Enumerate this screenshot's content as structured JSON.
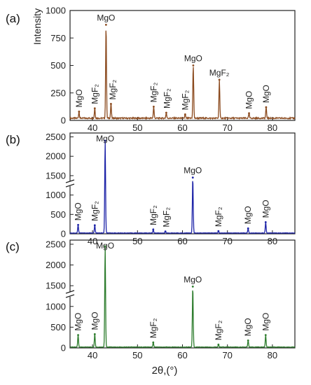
{
  "figure": {
    "xlabel": "2θ,(°)",
    "ylabel": "Intensity"
  },
  "chart_data": [
    {
      "type": "line",
      "panel": "(a)",
      "color": "#8B4A1E",
      "xlim": [
        35,
        85
      ],
      "ylim": [
        0,
        1000
      ],
      "xticks": [
        40,
        50,
        60,
        70,
        80
      ],
      "yticks": [
        0,
        250,
        500,
        750,
        1000
      ],
      "axis_break": false,
      "baseline": 20,
      "peaks": [
        {
          "x": 37.0,
          "y": 80
        },
        {
          "x": 40.5,
          "y": 110
        },
        {
          "x": 43.0,
          "y": 870
        },
        {
          "x": 44.1,
          "y": 150
        },
        {
          "x": 53.6,
          "y": 125
        },
        {
          "x": 56.4,
          "y": 70
        },
        {
          "x": 60.6,
          "y": 55
        },
        {
          "x": 62.4,
          "y": 500
        },
        {
          "x": 68.2,
          "y": 370
        },
        {
          "x": 74.8,
          "y": 65
        },
        {
          "x": 78.6,
          "y": 120
        }
      ],
      "annotations": [
        {
          "text": "MgO",
          "x": 37.0,
          "rotated": true
        },
        {
          "text": "MgF₂",
          "x": 40.5,
          "rotated": true
        },
        {
          "text": "MgO",
          "x": 43.0,
          "rotated": false
        },
        {
          "text": "MgF₂",
          "x": 44.5,
          "rotated": true
        },
        {
          "text": "MgF₂",
          "x": 53.6,
          "rotated": true
        },
        {
          "text": "MgF₂",
          "x": 56.6,
          "rotated": true
        },
        {
          "text": "MgF₂",
          "x": 60.6,
          "rotated": true
        },
        {
          "text": "MgO",
          "x": 62.4,
          "rotated": false
        },
        {
          "text": "MgF₂",
          "x": 68.2,
          "rotated": false
        },
        {
          "text": "MgO",
          "x": 74.8,
          "rotated": true
        },
        {
          "text": "MgO",
          "x": 78.6,
          "rotated": true
        }
      ]
    },
    {
      "type": "line",
      "panel": "(b)",
      "color": "#1E24A8",
      "xlim": [
        35,
        85
      ],
      "ylim": [
        0,
        2600
      ],
      "xticks": [
        40,
        50,
        60,
        70,
        80
      ],
      "yticks": [
        0,
        500,
        1000,
        1500,
        2000,
        2500
      ],
      "axis_break": true,
      "baseline": 20,
      "peaks": [
        {
          "x": 36.8,
          "y": 230
        },
        {
          "x": 40.5,
          "y": 220
        },
        {
          "x": 42.8,
          "y": 2400
        },
        {
          "x": 53.5,
          "y": 110
        },
        {
          "x": 56.2,
          "y": 60
        },
        {
          "x": 62.3,
          "y": 1450
        },
        {
          "x": 68.0,
          "y": 70
        },
        {
          "x": 74.6,
          "y": 140
        },
        {
          "x": 78.5,
          "y": 300
        }
      ],
      "annotations": [
        {
          "text": "MgO",
          "x": 36.8,
          "rotated": true
        },
        {
          "text": "MgF₂",
          "x": 40.5,
          "rotated": true
        },
        {
          "text": "MgO",
          "x": 42.8,
          "rotated": false
        },
        {
          "text": "MgF₂",
          "x": 53.5,
          "rotated": true
        },
        {
          "text": "MgF₂",
          "x": 56.4,
          "rotated": true
        },
        {
          "text": "MgO",
          "x": 62.3,
          "rotated": false
        },
        {
          "text": "MgF₂",
          "x": 68.0,
          "rotated": true
        },
        {
          "text": "MgO",
          "x": 74.6,
          "rotated": true
        },
        {
          "text": "MgO",
          "x": 78.5,
          "rotated": true
        }
      ]
    },
    {
      "type": "line",
      "panel": "(c)",
      "color": "#2E7D2E",
      "xlim": [
        35,
        85
      ],
      "ylim": [
        0,
        2600
      ],
      "xticks": [
        40,
        50,
        60,
        70,
        80
      ],
      "yticks": [
        0,
        500,
        1000,
        1500,
        2000,
        2500
      ],
      "axis_break": true,
      "baseline": 20,
      "peaks": [
        {
          "x": 36.8,
          "y": 310
        },
        {
          "x": 40.5,
          "y": 330
        },
        {
          "x": 42.8,
          "y": 2450
        },
        {
          "x": 53.5,
          "y": 130
        },
        {
          "x": 62.3,
          "y": 1480
        },
        {
          "x": 68.0,
          "y": 80
        },
        {
          "x": 74.6,
          "y": 180
        },
        {
          "x": 78.5,
          "y": 310
        }
      ],
      "annotations": [
        {
          "text": "MgO",
          "x": 36.8,
          "rotated": true
        },
        {
          "text": "MgO",
          "x": 40.5,
          "rotated": true
        },
        {
          "text": "MgO",
          "x": 42.8,
          "rotated": false
        },
        {
          "text": "MgF₂",
          "x": 53.5,
          "rotated": true
        },
        {
          "text": "MgO",
          "x": 62.3,
          "rotated": false
        },
        {
          "text": "MgF₂",
          "x": 68.0,
          "rotated": true
        },
        {
          "text": "MgO",
          "x": 74.6,
          "rotated": true
        },
        {
          "text": "MgO",
          "x": 78.5,
          "rotated": true
        }
      ]
    }
  ]
}
